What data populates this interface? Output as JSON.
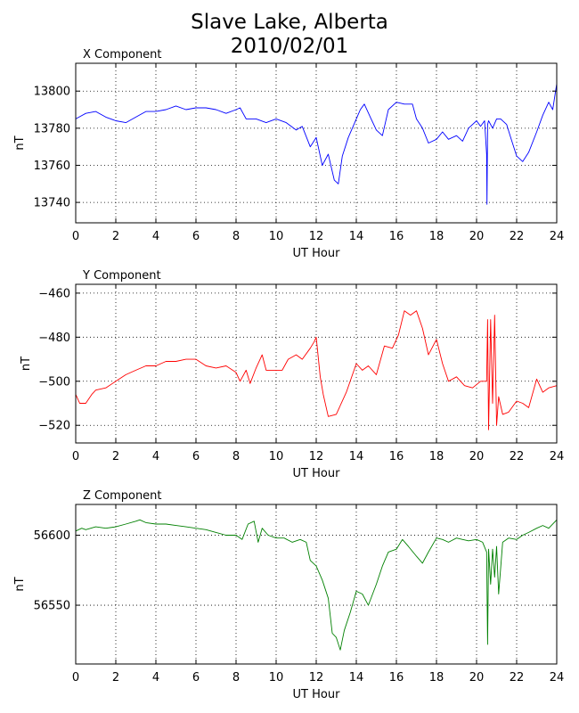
{
  "title_line1": "Slave Lake, Alberta",
  "title_line2": "2010/02/01",
  "chart_data": [
    {
      "type": "line",
      "title": "X Component",
      "xlabel": "UT Hour",
      "ylabel": "nT",
      "color": "#0000ff",
      "grid": true,
      "xlim": [
        0,
        24
      ],
      "ylim": [
        13729,
        13815
      ],
      "xticks": [
        0,
        2,
        4,
        6,
        8,
        10,
        12,
        14,
        16,
        18,
        20,
        22,
        24
      ],
      "yticks": [
        13740,
        13760,
        13780,
        13800
      ],
      "x": [
        0,
        0.5,
        1,
        1.5,
        2,
        2.5,
        3,
        3.5,
        4,
        4.5,
        5,
        5.5,
        6,
        6.5,
        7,
        7.5,
        8,
        8.2,
        8.5,
        9,
        9.5,
        10,
        10.5,
        11,
        11.3,
        11.7,
        12,
        12.3,
        12.6,
        12.9,
        13.1,
        13.3,
        13.6,
        14,
        14.2,
        14.4,
        14.7,
        15,
        15.3,
        15.6,
        16,
        16.4,
        16.8,
        17,
        17.3,
        17.6,
        18,
        18.3,
        18.6,
        19,
        19.3,
        19.6,
        20,
        20.2,
        20.4,
        20.5,
        20.52,
        20.55,
        20.6,
        20.8,
        21,
        21.2,
        21.5,
        21.7,
        22,
        22.3,
        22.6,
        23,
        23.3,
        23.6,
        23.8,
        24
      ],
      "y": [
        13785,
        13788,
        13789,
        13786,
        13784,
        13783,
        13786,
        13789,
        13789,
        13790,
        13792,
        13790,
        13791,
        13791,
        13790,
        13788,
        13790,
        13791,
        13785,
        13785,
        13783,
        13785,
        13783,
        13779,
        13781,
        13770,
        13775,
        13760,
        13766,
        13752,
        13750,
        13765,
        13775,
        13785,
        13790,
        13793,
        13786,
        13779,
        13776,
        13790,
        13794,
        13793,
        13793,
        13785,
        13780,
        13772,
        13774,
        13778,
        13774,
        13776,
        13773,
        13780,
        13784,
        13781,
        13784,
        13766,
        13739,
        13782,
        13784,
        13780,
        13785,
        13785,
        13782,
        13775,
        13765,
        13762,
        13767,
        13778,
        13787,
        13794,
        13790,
        13804
      ]
    },
    {
      "type": "line",
      "title": "Y Component",
      "xlabel": "UT Hour",
      "ylabel": "nT",
      "color": "#ff0000",
      "grid": true,
      "xlim": [
        0,
        24
      ],
      "ylim": [
        -528,
        -456
      ],
      "xticks": [
        0,
        2,
        4,
        6,
        8,
        10,
        12,
        14,
        16,
        18,
        20,
        22,
        24
      ],
      "yticks": [
        -460,
        -480,
        -500,
        -520
      ],
      "x": [
        0,
        0.2,
        0.5,
        0.8,
        1,
        1.5,
        2,
        2.5,
        3,
        3.5,
        4,
        4.5,
        5,
        5.5,
        6,
        6.5,
        7,
        7.5,
        8,
        8.2,
        8.5,
        8.7,
        9,
        9.3,
        9.5,
        10,
        10.3,
        10.6,
        11,
        11.3,
        11.7,
        11.9,
        12,
        12.2,
        12.35,
        12.6,
        13,
        13.5,
        14,
        14.3,
        14.6,
        15,
        15.4,
        15.8,
        16.1,
        16.4,
        16.7,
        17,
        17.3,
        17.6,
        18,
        18.3,
        18.6,
        19,
        19.4,
        19.8,
        20.2,
        20.5,
        20.55,
        20.6,
        20.7,
        20.8,
        20.9,
        21,
        21.1,
        21.3,
        21.6,
        22,
        22.3,
        22.6,
        23,
        23.3,
        23.6,
        24
      ],
      "y": [
        -506,
        -510,
        -510,
        -506,
        -504,
        -503,
        -500,
        -497,
        -495,
        -493,
        -493,
        -491,
        -491,
        -490,
        -490,
        -493,
        -494,
        -493,
        -496,
        -500,
        -495,
        -501,
        -494,
        -488,
        -495,
        -495,
        -495,
        -490,
        -488,
        -490,
        -485,
        -482,
        -480,
        -498,
        -506,
        -516,
        -515,
        -505,
        -492,
        -495,
        -493,
        -497,
        -484,
        -485,
        -479,
        -468,
        -470,
        -468,
        -476,
        -488,
        -481,
        -492,
        -500,
        -498,
        -502,
        -503,
        -500,
        -500,
        -472,
        -522,
        -472,
        -510,
        -470,
        -520,
        -507,
        -515,
        -514,
        -509,
        -510,
        -512,
        -499,
        -505,
        -503,
        -502
      ]
    },
    {
      "type": "line",
      "title": "Z Component",
      "xlabel": "UT Hour",
      "ylabel": "nT",
      "color": "#008000",
      "grid": true,
      "xlim": [
        0,
        24
      ],
      "ylim": [
        56508,
        56622
      ],
      "xticks": [
        0,
        2,
        4,
        6,
        8,
        10,
        12,
        14,
        16,
        18,
        20,
        22,
        24
      ],
      "yticks": [
        56600,
        56550
      ],
      "x": [
        0,
        0.3,
        0.5,
        1,
        1.5,
        2,
        2.5,
        3,
        3.2,
        3.5,
        4,
        4.5,
        5,
        5.5,
        6,
        6.5,
        7,
        7.5,
        8,
        8.3,
        8.6,
        8.9,
        9.1,
        9.3,
        9.6,
        10,
        10.4,
        10.8,
        11.2,
        11.5,
        11.7,
        12,
        12.3,
        12.6,
        12.8,
        13,
        13.2,
        13.4,
        13.7,
        14,
        14.3,
        14.6,
        15,
        15.3,
        15.6,
        16,
        16.3,
        16.6,
        17,
        17.3,
        17.6,
        18,
        18.3,
        18.6,
        19,
        19.3,
        19.6,
        20,
        20.3,
        20.5,
        20.55,
        20.6,
        20.7,
        20.8,
        20.9,
        21,
        21.1,
        21.3,
        21.6,
        22,
        22.3,
        22.6,
        23,
        23.3,
        23.6,
        24
      ],
      "y": [
        56603,
        56605,
        56604,
        56606,
        56605,
        56606,
        56608,
        56610,
        56611,
        56609,
        56608,
        56608,
        56607,
        56606,
        56605,
        56604,
        56602,
        56600,
        56600,
        56597,
        56608,
        56610,
        56595,
        56605,
        56600,
        56598,
        56598,
        56595,
        56597,
        56595,
        56582,
        56578,
        56568,
        56555,
        56530,
        56527,
        56518,
        56532,
        56545,
        56560,
        56558,
        56550,
        56565,
        56578,
        56588,
        56590,
        56597,
        56592,
        56585,
        56580,
        56588,
        56598,
        56597,
        56595,
        56598,
        56597,
        56596,
        56597,
        56595,
        56588,
        56522,
        56590,
        56565,
        56590,
        56570,
        56592,
        56558,
        56595,
        56598,
        56597,
        56600,
        56602,
        56605,
        56607,
        56605,
        56611
      ]
    }
  ]
}
